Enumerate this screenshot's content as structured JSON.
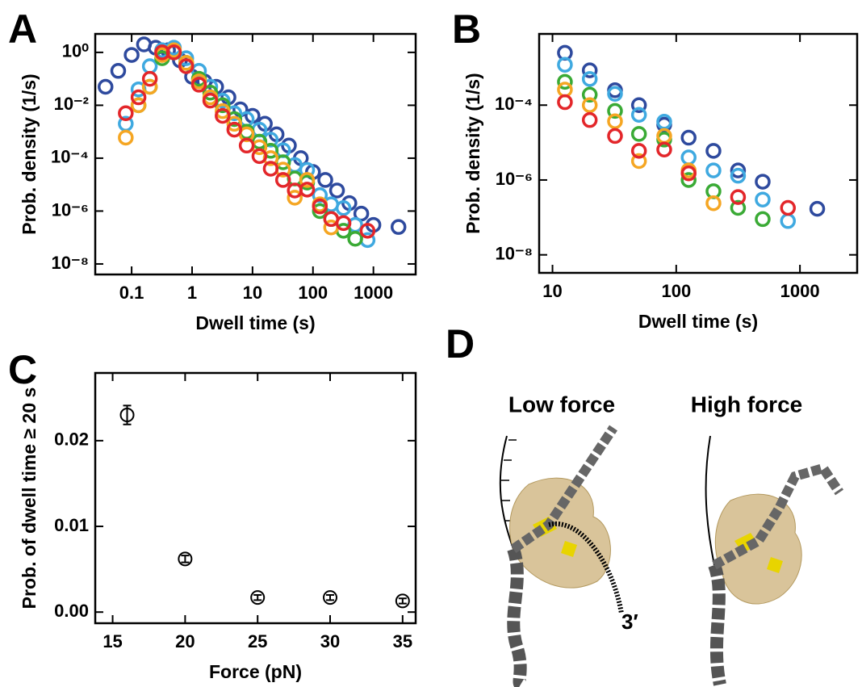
{
  "chart_data": [
    {
      "type": "scatter",
      "panel": "A",
      "xlabel": "Dwell time (s)",
      "ylabel": "Prob. density (1/s)",
      "xlog": true,
      "ylog": true,
      "xlim": [
        0.025,
        5000
      ],
      "ylim": [
        4e-09,
        5
      ],
      "xticks": [
        0.1,
        1,
        10,
        100,
        1000
      ],
      "yticks": [
        {
          "value": 1,
          "label": "10⁰"
        },
        {
          "value": 0.01,
          "label": "10⁻²"
        },
        {
          "value": 0.0001,
          "label": "10⁻⁴"
        },
        {
          "value": 1e-06,
          "label": "10⁻⁶"
        },
        {
          "value": 1e-08,
          "label": "10⁻⁸"
        }
      ],
      "series": [
        {
          "color": "#2e4a9e",
          "x": [
            0.037,
            0.06,
            0.1,
            0.16,
            0.25,
            0.4,
            0.63,
            1,
            1.6,
            2.5,
            4,
            6.3,
            10,
            16,
            25,
            40,
            63,
            100,
            160,
            250,
            400,
            630,
            1000,
            2600
          ],
          "values": [
            0.05,
            0.2,
            0.8,
            2,
            1.5,
            1.2,
            0.5,
            0.12,
            0.08,
            0.05,
            0.02,
            0.007,
            0.004,
            0.002,
            0.0008,
            0.0003,
            0.0001,
            3e-05,
            1.5e-05,
            6e-06,
            2e-06,
            8e-07,
            3e-07,
            2.5e-07
          ]
        },
        {
          "color": "#3fa9e0",
          "x": [
            0.08,
            0.13,
            0.2,
            0.32,
            0.5,
            0.8,
            1.3,
            2,
            3.2,
            5,
            8,
            13,
            20,
            32,
            50,
            80,
            130,
            200,
            320,
            500,
            800
          ],
          "values": [
            0.002,
            0.04,
            0.3,
            1.2,
            1.5,
            0.6,
            0.2,
            0.05,
            0.015,
            0.005,
            0.003,
            0.0012,
            0.0005,
            0.0002,
            5.5e-05,
            3.6e-05,
            4e-06,
            1.8e-06,
            1.3e-06,
            3e-07,
            8e-08
          ]
        },
        {
          "color": "#3aaa35",
          "x": [
            0.13,
            0.2,
            0.32,
            0.5,
            0.8,
            1.3,
            2,
            3.2,
            5,
            8,
            13,
            20,
            32,
            50,
            80,
            130,
            200,
            320,
            500
          ],
          "values": [
            0.01,
            0.05,
            0.6,
            1,
            0.4,
            0.1,
            0.03,
            0.01,
            0.003,
            0.001,
            0.00042,
            0.00019,
            7e-05,
            1.7e-05,
            1.2e-05,
            1e-06,
            5e-07,
            1.8e-07,
            9e-08
          ]
        },
        {
          "color": "#f5a623",
          "x": [
            0.08,
            0.13,
            0.2,
            0.32,
            0.5,
            0.8,
            1.3,
            2,
            3.2,
            5,
            8,
            13,
            20,
            32,
            50,
            80,
            130,
            200
          ],
          "values": [
            0.0006,
            0.01,
            0.05,
            0.8,
            1.2,
            0.4,
            0.08,
            0.02,
            0.006,
            0.002,
            0.0008,
            0.00026,
            0.0001,
            3.7e-05,
            3.2e-06,
            1.5e-05,
            1.8e-06,
            2.4e-07
          ]
        },
        {
          "color": "#e3262a",
          "x": [
            0.08,
            0.13,
            0.2,
            0.32,
            0.5,
            0.8,
            1.3,
            2,
            3.2,
            5,
            8,
            13,
            20,
            32,
            50,
            80,
            130,
            200,
            320,
            800
          ],
          "values": [
            0.005,
            0.02,
            0.1,
            1,
            1,
            0.3,
            0.06,
            0.015,
            0.004,
            0.0012,
            0.0003,
            0.00012,
            4e-05,
            1.5e-05,
            6e-06,
            6.5e-06,
            1.5e-06,
            5e-07,
            3.5e-07,
            1.8e-07
          ]
        }
      ]
    },
    {
      "type": "scatter",
      "panel": "B",
      "xlabel": "Dwell time (s)",
      "ylabel": "Prob. density (1/s)",
      "xlog": true,
      "ylog": true,
      "xlim": [
        7.8,
        2900
      ],
      "ylim": [
        3.3e-09,
        0.008
      ],
      "xticks": [
        10,
        100,
        1000
      ],
      "yticks": [
        {
          "value": 0.0001,
          "label": "10⁻⁴"
        },
        {
          "value": 1e-06,
          "label": "10⁻⁶"
        },
        {
          "value": 1e-08,
          "label": "10⁻⁸"
        }
      ],
      "series": [
        {
          "color": "#2e4a9e",
          "x": [
            12.6,
            20,
            32,
            50,
            80,
            126,
            200,
            316,
            500,
            1380
          ],
          "values": [
            0.0025,
            0.00085,
            0.00025,
            0.0001,
            3e-05,
            1.35e-05,
            6e-06,
            1.8e-06,
            9e-07,
            1.7e-07
          ]
        },
        {
          "color": "#3fa9e0",
          "x": [
            12.6,
            20,
            32,
            50,
            80,
            126,
            200,
            316,
            500,
            800
          ],
          "values": [
            0.0012,
            0.0005,
            0.0002,
            5.5e-05,
            3.6e-05,
            4e-06,
            1.8e-06,
            1.3e-06,
            3e-07,
            8e-08
          ]
        },
        {
          "color": "#3aaa35",
          "x": [
            12.6,
            20,
            32,
            50,
            80,
            126,
            200,
            316,
            500
          ],
          "values": [
            0.00042,
            0.00019,
            7e-05,
            1.7e-05,
            1.2e-05,
            1e-06,
            5e-07,
            1.8e-07,
            9e-08
          ]
        },
        {
          "color": "#f5a623",
          "x": [
            12.6,
            20,
            32,
            50,
            80,
            126,
            200
          ],
          "values": [
            0.00026,
            0.0001,
            3.7e-05,
            3.2e-06,
            1.5e-05,
            1.8e-06,
            2.4e-07
          ]
        },
        {
          "color": "#e3262a",
          "x": [
            12.6,
            20,
            32,
            50,
            80,
            126,
            316,
            800
          ],
          "values": [
            0.00012,
            4e-05,
            1.5e-05,
            6e-06,
            6.5e-06,
            1.5e-06,
            3.5e-07,
            1.8e-07
          ]
        }
      ]
    },
    {
      "type": "scatter",
      "panel": "C",
      "xlabel": "Force (pN)",
      "ylabel": "Prob. of dwell time ≥ 20 s",
      "xlim": [
        13.8,
        35.9
      ],
      "ylim": [
        -0.0013,
        0.0279
      ],
      "xticks": [
        15,
        20,
        25,
        30,
        35
      ],
      "yticks": [
        {
          "value": 0,
          "label": "0.00"
        },
        {
          "value": 0.01,
          "label": "0.01"
        },
        {
          "value": 0.02,
          "label": "0.02"
        }
      ],
      "series": [
        {
          "color": "#000000",
          "x": [
            16,
            20,
            25,
            30,
            35
          ],
          "values": [
            0.023,
            0.0062,
            0.0017,
            0.0017,
            0.0013
          ],
          "errors": [
            0.0011,
            0.0004,
            0.0003,
            0.0003,
            0.0003
          ]
        }
      ]
    }
  ],
  "diagram": {
    "panel": "D",
    "labels": [
      "Low force",
      "High force"
    ],
    "end_label": "3′"
  }
}
